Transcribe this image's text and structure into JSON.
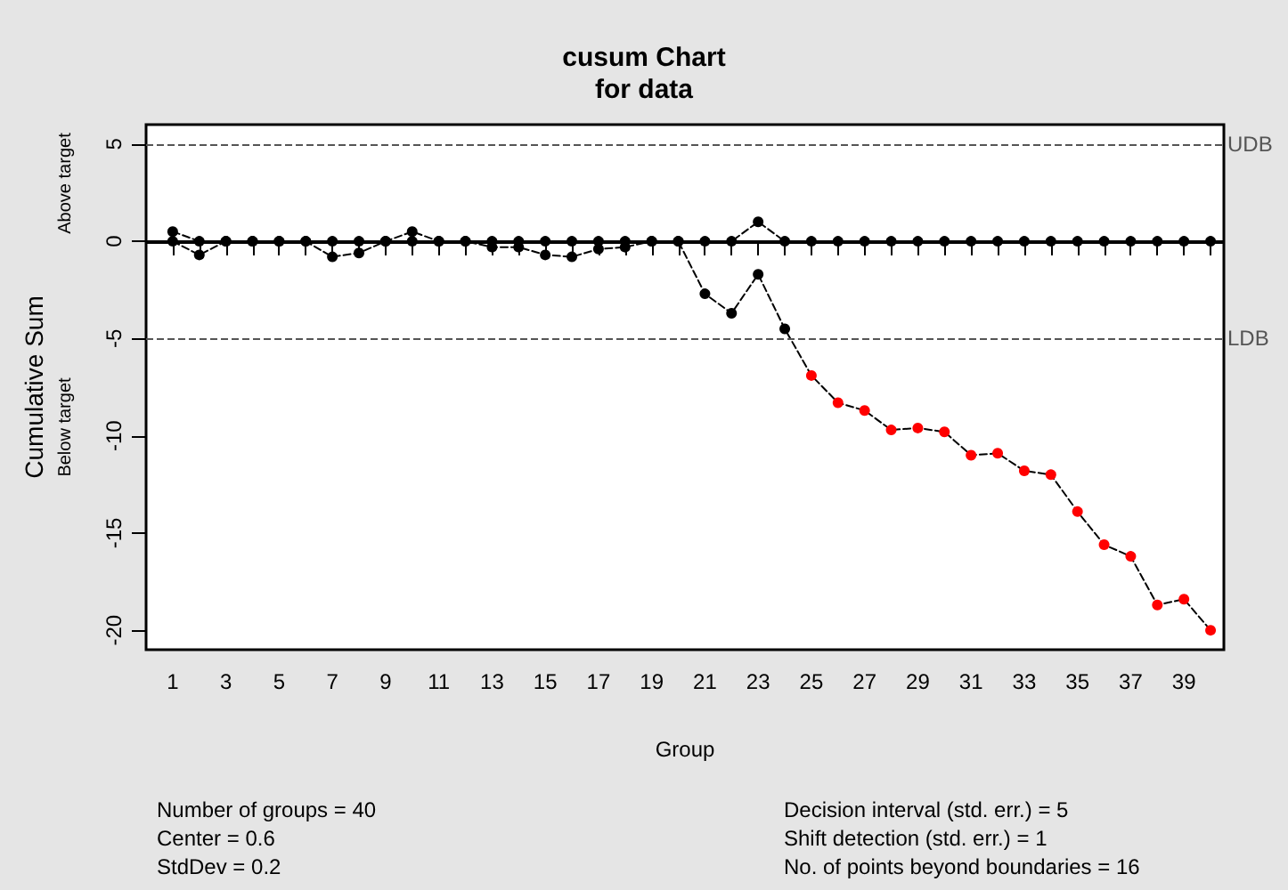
{
  "chart_data": {
    "type": "line",
    "title": "cusum Chart",
    "subtitle": "for data",
    "xlabel": "Group",
    "ylabel": "Cumulative Sum",
    "x": [
      1,
      2,
      3,
      4,
      5,
      6,
      7,
      8,
      9,
      10,
      11,
      12,
      13,
      14,
      15,
      16,
      17,
      18,
      19,
      20,
      21,
      22,
      23,
      24,
      25,
      26,
      27,
      28,
      29,
      30,
      31,
      32,
      33,
      34,
      35,
      36,
      37,
      38,
      39,
      40
    ],
    "xlim": [
      0,
      40.5
    ],
    "xticks": [
      1,
      {
        "value": 2,
        "label": null
      },
      3,
      {
        "value": 4,
        "label": null
      },
      5,
      {
        "value": 6,
        "label": null
      },
      7,
      {
        "value": 8,
        "label": null
      },
      9,
      {
        "value": 10,
        "label": null
      },
      11,
      {
        "value": 12,
        "label": null
      },
      13,
      {
        "value": 14,
        "label": null
      },
      15,
      {
        "value": 16,
        "label": null
      },
      17,
      {
        "value": 18,
        "label": null
      },
      19,
      {
        "value": 20,
        "label": null
      },
      21,
      {
        "value": 22,
        "label": null
      },
      23,
      {
        "value": 24,
        "label": null
      },
      25,
      {
        "value": 26,
        "label": null
      },
      27,
      {
        "value": 28,
        "label": null
      },
      29,
      {
        "value": 30,
        "label": null
      },
      31,
      {
        "value": 32,
        "label": null
      },
      33,
      {
        "value": 34,
        "label": null
      },
      35,
      {
        "value": 36,
        "label": null
      },
      37,
      {
        "value": 38,
        "label": null
      },
      39,
      {
        "value": 40,
        "label": null
      }
    ],
    "series": [
      {
        "color": "#000000",
        "values": [
          0.5,
          0,
          0,
          0,
          0,
          0,
          0,
          0,
          0,
          0.5,
          0,
          0,
          0,
          0,
          0,
          0,
          0,
          0,
          0,
          0,
          0,
          0,
          1.0,
          0,
          0,
          0,
          0,
          0,
          0,
          0,
          0,
          0,
          0,
          0,
          0,
          0,
          0,
          0,
          0,
          0
        ]
      },
      {
        "color": "#000000",
        "colors": [
          "#000000",
          "#000000",
          "#000000",
          "#000000",
          "#000000",
          "#000000",
          "#000000",
          "#000000",
          "#000000",
          "#000000",
          "#000000",
          "#000000",
          "#000000",
          "#000000",
          "#000000",
          "#000000",
          "#000000",
          "#000000",
          "#000000",
          "#000000",
          "#000000",
          "#000000",
          "#000000",
          "#000000",
          "#ff0000",
          "#ff0000",
          "#ff0000",
          "#ff0000",
          "#ff0000",
          "#ff0000",
          "#ff0000",
          "#ff0000",
          "#ff0000",
          "#ff0000",
          "#ff0000",
          "#ff0000",
          "#ff0000",
          "#ff0000",
          "#ff0000",
          "#ff0000"
        ],
        "values": [
          0,
          -0.7,
          0,
          0,
          0,
          0,
          -0.8,
          -0.6,
          0,
          0,
          0,
          0,
          -0.3,
          -0.3,
          -0.7,
          -0.8,
          -0.4,
          -0.3,
          0,
          0,
          -2.7,
          -3.7,
          -1.7,
          -4.5,
          -6.9,
          -8.3,
          -8.7,
          -9.7,
          -9.6,
          -9.8,
          -11.0,
          -10.9,
          -11.8,
          -12.0,
          -13.9,
          -15.6,
          -16.2,
          -18.7,
          -18.4,
          -20.0
        ]
      }
    ],
    "ylim": [
      -21,
      6
    ],
    "yticks": [
      -20,
      -15,
      -10,
      -5,
      0,
      5
    ],
    "grid": false,
    "marker": "circle",
    "line_style": "dashed",
    "ref_lines": [
      {
        "axis": "y",
        "value": 5,
        "label": "UDB",
        "line_style": "dashed"
      },
      {
        "axis": "y",
        "value": -5,
        "label": "LDB",
        "line_style": "dashed"
      },
      {
        "axis": "y",
        "value": 0,
        "label": null,
        "line_style": "solid"
      }
    ],
    "annotations": [
      "Above target",
      "Below target",
      "Number of groups = 40",
      "Center = 0.6",
      "StdDev = 0.2",
      "Decision interval (std. err.) = 5",
      "Shift detection (std. err.) = 1",
      "No. of points beyond boundaries = 16"
    ]
  }
}
